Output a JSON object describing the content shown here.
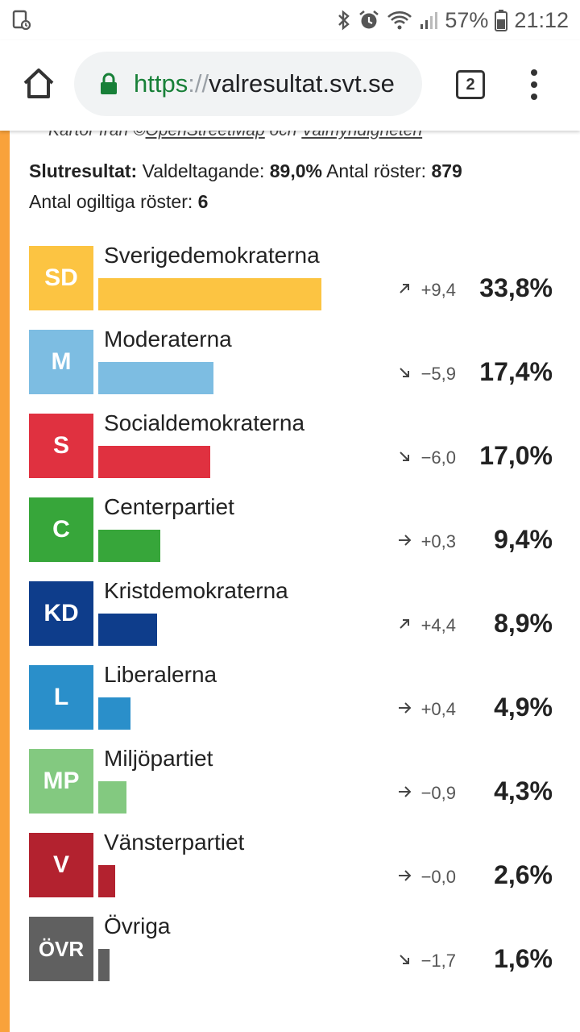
{
  "status_bar": {
    "battery": "57%",
    "time": "21:12"
  },
  "browser": {
    "url_scheme": "https",
    "url_sep": "://",
    "url_host": "valresultat.svt.se",
    "tab_count": "2"
  },
  "page": {
    "credit_prefix": "Kartor från ©",
    "credit_link1": "OpenStreetMap",
    "credit_mid": " och ",
    "credit_link2": "Valmyndigheten",
    "summary": {
      "label": "Slutresultat:",
      "turnout_label": "Valdeltagande:",
      "turnout_value": "89,0%",
      "votes_label": "Antal röster:",
      "votes_value": "879",
      "invalid_label": "Antal ogiltiga röster:",
      "invalid_value": "6"
    },
    "parties": [
      {
        "abbr": "SD",
        "name": "Sverigedemokraterna",
        "change": "+9,4",
        "trend": "up",
        "percent": "33,8%",
        "share": 33.8,
        "color": "#fcc442"
      },
      {
        "abbr": "M",
        "name": "Moderaterna",
        "change": "−5,9",
        "trend": "down",
        "percent": "17,4%",
        "share": 17.4,
        "color": "#7dbde2"
      },
      {
        "abbr": "S",
        "name": "Socialdemokraterna",
        "change": "−6,0",
        "trend": "down",
        "percent": "17,0%",
        "share": 17.0,
        "color": "#e03140"
      },
      {
        "abbr": "C",
        "name": "Centerpartiet",
        "change": "+0,3",
        "trend": "flat",
        "percent": "9,4%",
        "share": 9.4,
        "color": "#37a63a"
      },
      {
        "abbr": "KD",
        "name": "Kristdemokraterna",
        "change": "+4,4",
        "trend": "up",
        "percent": "8,9%",
        "share": 8.9,
        "color": "#0e3d8b"
      },
      {
        "abbr": "L",
        "name": "Liberalerna",
        "change": "+0,4",
        "trend": "flat",
        "percent": "4,9%",
        "share": 4.9,
        "color": "#2a8fca"
      },
      {
        "abbr": "MP",
        "name": "Miljöpartiet",
        "change": "−0,9",
        "trend": "flat",
        "percent": "4,3%",
        "share": 4.3,
        "color": "#83c980"
      },
      {
        "abbr": "V",
        "name": "Vänsterpartiet",
        "change": "−0,0",
        "trend": "flat",
        "percent": "2,6%",
        "share": 2.6,
        "color": "#b3222f"
      },
      {
        "abbr": "ÖVR",
        "name": "Övriga",
        "change": "−1,7",
        "trend": "down",
        "percent": "1,6%",
        "share": 1.6,
        "color": "#606060"
      }
    ]
  }
}
